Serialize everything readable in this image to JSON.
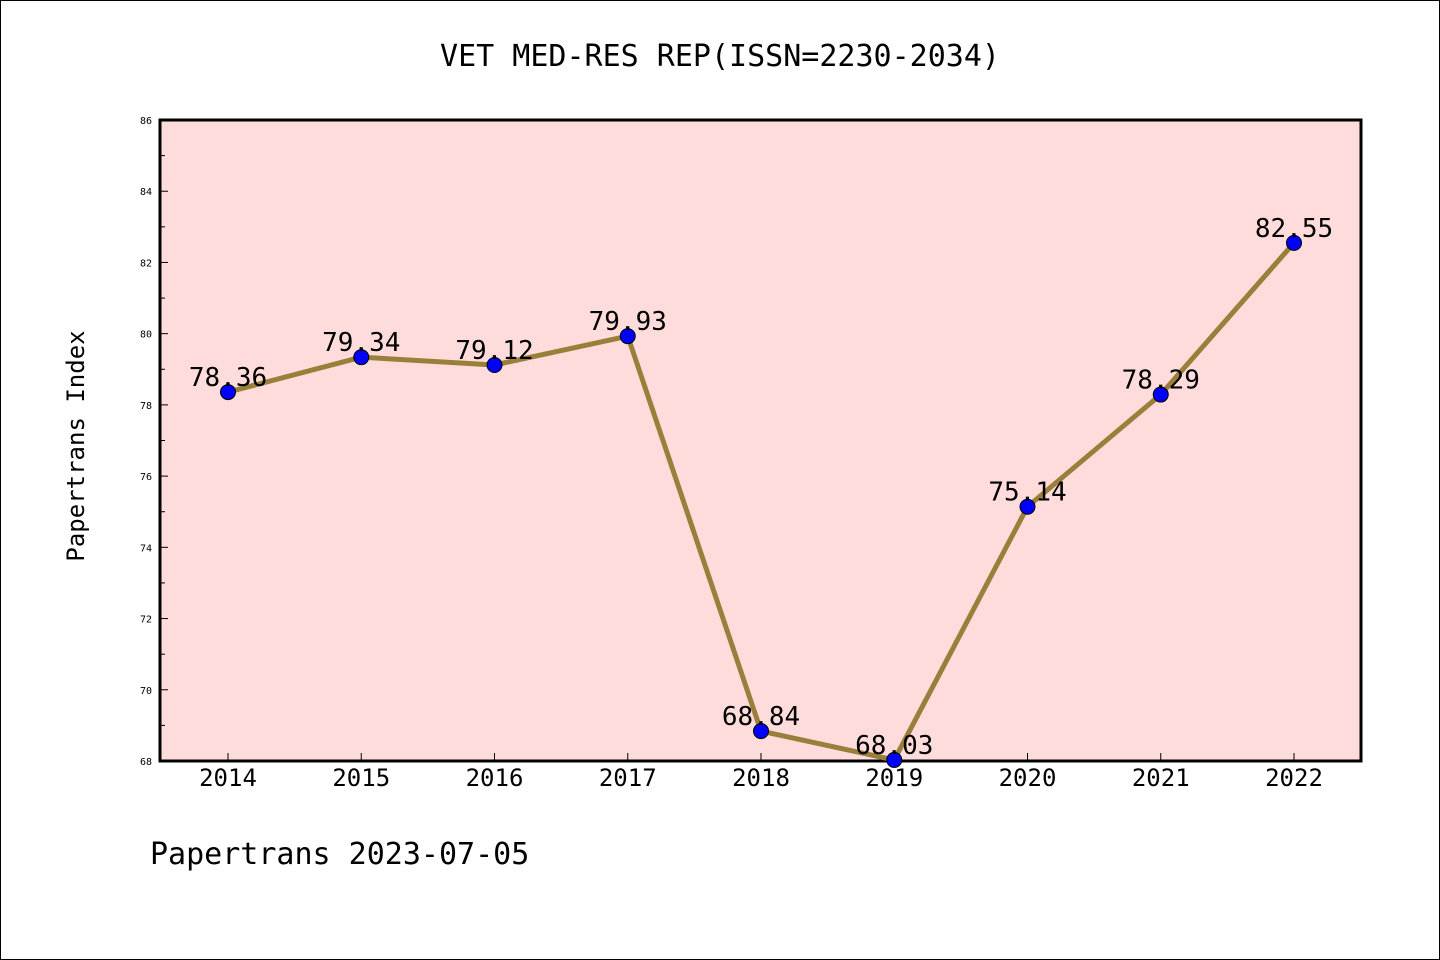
{
  "chart_data": {
    "type": "line",
    "title": "VET MED-RES REP(ISSN=2230-2034)",
    "xlabel": "",
    "ylabel": "Papertrans Index",
    "categories": [
      "2014",
      "2015",
      "2016",
      "2017",
      "2018",
      "2019",
      "2020",
      "2021",
      "2022"
    ],
    "series": [
      {
        "values": [
          78.36,
          79.34,
          79.12,
          79.93,
          68.84,
          68.03,
          75.14,
          78.29,
          82.55
        ],
        "labels": [
          "78.36",
          "79.34",
          "79.12",
          "79.93",
          "68.84",
          "68.03",
          "75.14",
          "78.29",
          "82.55"
        ]
      }
    ],
    "ylim": [
      68,
      86
    ],
    "yticks": [
      "68",
      "70",
      "72",
      "74",
      "76",
      "78",
      "80",
      "82",
      "84",
      "86"
    ],
    "grid": false,
    "colors": {
      "plot_background": "#ffdcdc",
      "line": "#9a7f3a",
      "marker": "#0000ff"
    }
  },
  "footer": {
    "text": "Papertrans 2023-07-05"
  }
}
